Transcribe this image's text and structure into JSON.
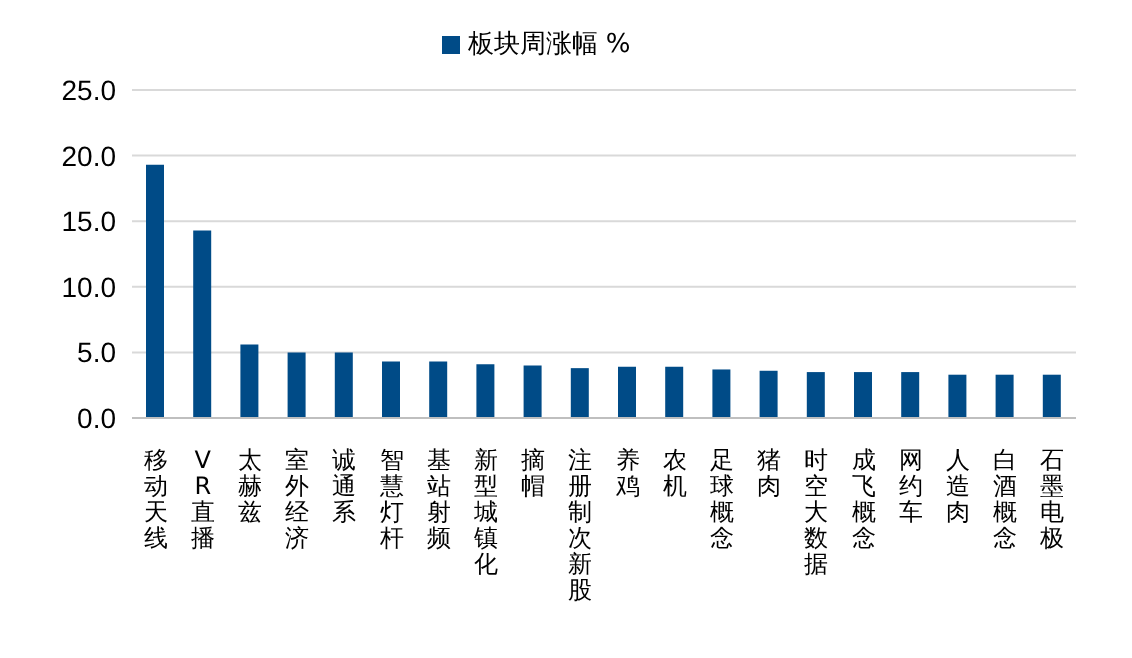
{
  "chart_data": {
    "type": "bar",
    "categories": [
      "移动天线",
      "VR直播",
      "太赫兹",
      "室外经济",
      "诚通系",
      "智慧灯杆",
      "基站射频",
      "新型城镇化",
      "摘帽",
      "注册制次新股",
      "养鸡",
      "农机",
      "足球概念",
      "猪肉",
      "时空大数据",
      "成飞概念",
      "网约车",
      "人造肉",
      "白酒概念",
      "石墨电极"
    ],
    "series": [
      {
        "name": "板块周涨幅 %",
        "color": "#004b87",
        "values": [
          19.3,
          14.3,
          5.6,
          5.0,
          5.0,
          4.3,
          4.3,
          4.1,
          4.0,
          3.8,
          3.9,
          3.9,
          3.7,
          3.6,
          3.5,
          3.5,
          3.5,
          3.3,
          3.3,
          3.3
        ]
      }
    ],
    "ylim": [
      0,
      25
    ],
    "yticks": [
      {
        "value": 0,
        "label": "0.0"
      },
      {
        "value": 5,
        "label": "5.0"
      },
      {
        "value": 10,
        "label": "10.0"
      },
      {
        "value": 15,
        "label": "15.0"
      },
      {
        "value": 20,
        "label": "20.0"
      },
      {
        "value": 25,
        "label": "25.0"
      }
    ],
    "grid": "y",
    "legend": "top"
  }
}
